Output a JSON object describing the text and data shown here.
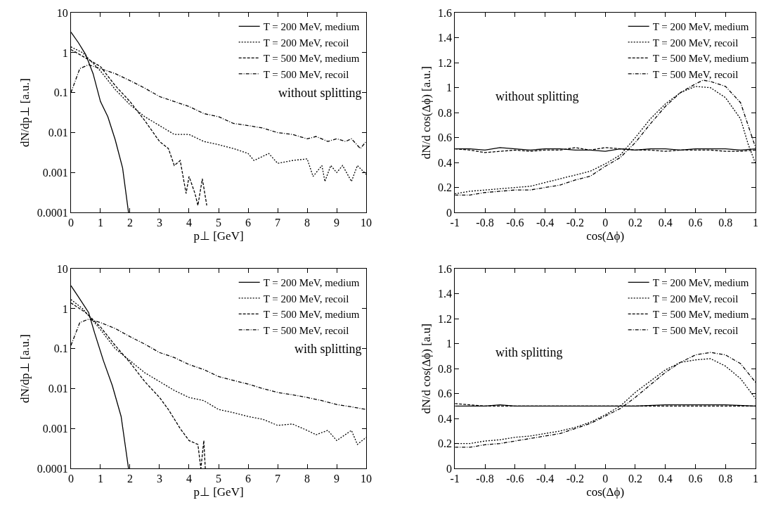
{
  "chart_data": [
    {
      "type": "line",
      "xlabel": "p⊥ [GeV]",
      "ylabel": "dN/dp⊥ [a.u.]",
      "log": "y",
      "xlim": [
        0,
        10
      ],
      "xticks": [
        0,
        1,
        2,
        3,
        4,
        5,
        6,
        7,
        8,
        9,
        10
      ],
      "ylim": [
        0.0001,
        10
      ],
      "yticks": [
        0.0001,
        0.001,
        0.01,
        0.1,
        1,
        10
      ],
      "legend": "top right",
      "annotations": [
        "without splitting"
      ],
      "series": [
        {
          "name": "T = 200 MeV, medium",
          "color": "#000000",
          "line_style": "solid",
          "x": [
            0,
            0.25,
            0.5,
            0.75,
            1.0,
            1.25,
            1.5,
            1.75,
            1.95
          ],
          "values": [
            3.3,
            1.8,
            0.9,
            0.3,
            0.06,
            0.025,
            0.0066,
            0.0013,
            0.0001
          ]
        },
        {
          "name": "T = 200 MeV, recoil",
          "color": "#000000",
          "line_style": "dotted",
          "x": [
            0,
            0.4,
            1,
            1.5,
            2,
            2.5,
            3,
            3.5,
            4,
            4.5,
            5,
            5.5,
            6,
            6.2,
            6.7,
            7,
            7.5,
            8,
            8.2,
            8.5,
            8.6,
            8.8,
            9,
            9.2,
            9.5,
            9.7,
            10
          ],
          "values": [
            1.4,
            1.0,
            0.35,
            0.12,
            0.05,
            0.025,
            0.015,
            0.009,
            0.009,
            0.006,
            0.005,
            0.004,
            0.003,
            0.002,
            0.003,
            0.0017,
            0.002,
            0.0022,
            0.0008,
            0.0015,
            0.0006,
            0.0015,
            0.001,
            0.0015,
            0.0006,
            0.0015,
            0.0009
          ]
        },
        {
          "name": "T = 500 MeV, medium",
          "color": "#000000",
          "line_style": "dashed",
          "x": [
            0,
            0.3,
            1,
            1.5,
            2,
            2.5,
            3,
            3.3,
            3.5,
            3.7,
            3.9,
            4.0,
            4.2,
            4.3,
            4.45,
            4.6
          ],
          "values": [
            1.2,
            0.9,
            0.45,
            0.15,
            0.06,
            0.02,
            0.006,
            0.004,
            0.0015,
            0.002,
            0.0003,
            0.0008,
            0.0003,
            0.00015,
            0.0007,
            0.00015
          ]
        },
        {
          "name": "T = 500 MeV, recoil",
          "color": "#000000",
          "line_style": "dashdot",
          "x": [
            0,
            0.3,
            0.6,
            1,
            1.5,
            2,
            2.5,
            3,
            3.5,
            4,
            4.5,
            5,
            5.5,
            6,
            6.5,
            7,
            7.5,
            8,
            8.3,
            8.7,
            9,
            9.3,
            9.5,
            9.8,
            10
          ],
          "values": [
            0.1,
            0.4,
            0.5,
            0.4,
            0.3,
            0.2,
            0.13,
            0.08,
            0.06,
            0.045,
            0.03,
            0.025,
            0.017,
            0.015,
            0.013,
            0.01,
            0.009,
            0.007,
            0.008,
            0.006,
            0.007,
            0.006,
            0.007,
            0.004,
            0.006
          ]
        }
      ]
    },
    {
      "type": "line",
      "xlabel": "cos(Δϕ)",
      "ylabel": "dN/d cos(Δϕ) [a.u.]",
      "xlim": [
        -1,
        1
      ],
      "xticks": [
        -1,
        -0.8,
        -0.6,
        -0.4,
        -0.2,
        0,
        0.2,
        0.4,
        0.6,
        0.8,
        1
      ],
      "ylim": [
        0,
        1.6
      ],
      "yticks": [
        0,
        0.2,
        0.4,
        0.6,
        0.8,
        1,
        1.2,
        1.4,
        1.6
      ],
      "legend": "top right",
      "annotations": [
        "without splitting"
      ],
      "series": [
        {
          "name": "T = 200 MeV, medium",
          "color": "#000000",
          "line_style": "solid",
          "x": [
            -1,
            -0.9,
            -0.8,
            -0.7,
            -0.6,
            -0.5,
            -0.4,
            -0.3,
            -0.2,
            -0.1,
            0,
            0.1,
            0.2,
            0.3,
            0.4,
            0.5,
            0.6,
            0.7,
            0.8,
            0.9,
            1
          ],
          "values": [
            0.51,
            0.51,
            0.5,
            0.52,
            0.51,
            0.5,
            0.51,
            0.51,
            0.5,
            0.5,
            0.49,
            0.51,
            0.5,
            0.51,
            0.51,
            0.5,
            0.51,
            0.51,
            0.51,
            0.5,
            0.51
          ]
        },
        {
          "name": "T = 200 MeV, recoil",
          "color": "#000000",
          "line_style": "dotted",
          "x": [
            -1,
            -0.9,
            -0.8,
            -0.7,
            -0.6,
            -0.5,
            -0.4,
            -0.3,
            -0.2,
            -0.1,
            0,
            0.1,
            0.2,
            0.3,
            0.4,
            0.5,
            0.6,
            0.7,
            0.8,
            0.9,
            0.95,
            1
          ],
          "values": [
            0.15,
            0.17,
            0.18,
            0.19,
            0.2,
            0.21,
            0.24,
            0.27,
            0.3,
            0.33,
            0.39,
            0.46,
            0.6,
            0.75,
            0.87,
            0.96,
            1.01,
            1.0,
            0.92,
            0.75,
            0.55,
            0.39
          ]
        },
        {
          "name": "T = 500 MeV, medium",
          "color": "#000000",
          "line_style": "dashed",
          "x": [
            -1,
            -0.9,
            -0.8,
            -0.7,
            -0.6,
            -0.5,
            -0.4,
            -0.3,
            -0.2,
            -0.1,
            0,
            0.1,
            0.2,
            0.3,
            0.4,
            0.5,
            0.6,
            0.7,
            0.8,
            0.9,
            1
          ],
          "values": [
            0.51,
            0.5,
            0.48,
            0.49,
            0.5,
            0.49,
            0.5,
            0.5,
            0.52,
            0.5,
            0.52,
            0.51,
            0.5,
            0.5,
            0.49,
            0.5,
            0.5,
            0.5,
            0.49,
            0.49,
            0.5
          ]
        },
        {
          "name": "T = 500 MeV, recoil",
          "color": "#000000",
          "line_style": "dashdot",
          "x": [
            -1,
            -0.9,
            -0.8,
            -0.7,
            -0.6,
            -0.5,
            -0.4,
            -0.3,
            -0.2,
            -0.1,
            0,
            0.1,
            0.2,
            0.3,
            0.4,
            0.5,
            0.6,
            0.65,
            0.7,
            0.8,
            0.9,
            0.95,
            1
          ],
          "values": [
            0.14,
            0.14,
            0.16,
            0.17,
            0.18,
            0.18,
            0.2,
            0.22,
            0.26,
            0.29,
            0.37,
            0.44,
            0.56,
            0.71,
            0.85,
            0.96,
            1.03,
            1.06,
            1.05,
            1.01,
            0.88,
            0.7,
            0.52
          ]
        }
      ]
    },
    {
      "type": "line",
      "xlabel": "p⊥ [GeV]",
      "ylabel": "dN/dp⊥ [a.u.]",
      "log": "y",
      "xlim": [
        0,
        10
      ],
      "xticks": [
        0,
        1,
        2,
        3,
        4,
        5,
        6,
        7,
        8,
        9,
        10
      ],
      "ylim": [
        0.0001,
        10
      ],
      "yticks": [
        0.0001,
        0.001,
        0.01,
        0.1,
        1,
        10
      ],
      "legend": "top right",
      "annotations": [
        "with splitting"
      ],
      "series": [
        {
          "name": "T = 200 MeV, medium",
          "color": "#000000",
          "line_style": "solid",
          "x": [
            0,
            0.25,
            0.6,
            0.8,
            1.1,
            1.4,
            1.7,
            1.95
          ],
          "values": [
            3.8,
            2,
            0.8,
            0.25,
            0.05,
            0.012,
            0.002,
            0.0001
          ]
        },
        {
          "name": "T = 200 MeV, recoil",
          "color": "#000000",
          "line_style": "dotted",
          "x": [
            0,
            0.4,
            1,
            1.5,
            2,
            2.5,
            3,
            3.5,
            4,
            4.5,
            5,
            5.5,
            6,
            6.5,
            7,
            7.5,
            8,
            8.3,
            8.7,
            9,
            9.5,
            9.7,
            10
          ],
          "values": [
            1.7,
            1,
            0.3,
            0.1,
            0.05,
            0.025,
            0.015,
            0.009,
            0.006,
            0.005,
            0.003,
            0.0025,
            0.002,
            0.0017,
            0.0012,
            0.0013,
            0.0009,
            0.0007,
            0.0009,
            0.0005,
            0.0009,
            0.0004,
            0.0006
          ]
        },
        {
          "name": "T = 500 MeV, medium",
          "color": "#000000",
          "line_style": "dashed",
          "x": [
            0,
            0.5,
            1,
            1.5,
            2,
            2.5,
            3,
            3.3,
            3.7,
            4,
            4.3,
            4.4,
            4.5,
            4.55
          ],
          "values": [
            1.4,
            0.8,
            0.35,
            0.12,
            0.045,
            0.015,
            0.006,
            0.003,
            0.001,
            0.0005,
            0.0004,
            0.0001,
            0.0005,
            0.0001
          ]
        },
        {
          "name": "T = 500 MeV, recoil",
          "color": "#000000",
          "line_style": "dashdot",
          "x": [
            0,
            0.3,
            0.6,
            1,
            1.5,
            2,
            2.5,
            3,
            3.5,
            4,
            4.5,
            5,
            5.5,
            6,
            6.5,
            7,
            7.5,
            8,
            8.5,
            9,
            9.5,
            10
          ],
          "values": [
            0.12,
            0.45,
            0.55,
            0.45,
            0.32,
            0.2,
            0.13,
            0.08,
            0.06,
            0.04,
            0.03,
            0.02,
            0.016,
            0.013,
            0.01,
            0.008,
            0.007,
            0.006,
            0.005,
            0.004,
            0.0035,
            0.003
          ]
        }
      ]
    },
    {
      "type": "line",
      "xlabel": "cos(Δϕ)",
      "ylabel": "dN/d cos(Δϕ) [a.u]",
      "xlim": [
        -1,
        1
      ],
      "xticks": [
        -1,
        -0.8,
        -0.6,
        -0.4,
        -0.2,
        0,
        0.2,
        0.4,
        0.6,
        0.8,
        1
      ],
      "ylim": [
        0,
        1.6
      ],
      "yticks": [
        0,
        0.2,
        0.4,
        0.6,
        0.8,
        1,
        1.2,
        1.4,
        1.6
      ],
      "legend": "top right",
      "annotations": [
        "with splitting"
      ],
      "series": [
        {
          "name": "T = 200 MeV, medium",
          "color": "#000000",
          "line_style": "solid",
          "x": [
            -1,
            -0.8,
            -0.7,
            -0.6,
            -0.4,
            -0.2,
            -0.1,
            0,
            0.2,
            0.4,
            0.6,
            0.8,
            1
          ],
          "values": [
            0.5,
            0.5,
            0.51,
            0.5,
            0.5,
            0.5,
            0.5,
            0.5,
            0.5,
            0.51,
            0.51,
            0.51,
            0.5
          ]
        },
        {
          "name": "T = 200 MeV, recoil",
          "color": "#000000",
          "line_style": "dotted",
          "x": [
            -1,
            -0.9,
            -0.8,
            -0.7,
            -0.6,
            -0.5,
            -0.4,
            -0.3,
            -0.2,
            -0.1,
            0,
            0.1,
            0.2,
            0.3,
            0.4,
            0.5,
            0.6,
            0.7,
            0.8,
            0.9,
            1
          ],
          "values": [
            0.2,
            0.2,
            0.22,
            0.23,
            0.25,
            0.26,
            0.28,
            0.3,
            0.33,
            0.37,
            0.43,
            0.5,
            0.61,
            0.7,
            0.79,
            0.85,
            0.87,
            0.88,
            0.82,
            0.72,
            0.56
          ]
        },
        {
          "name": "T = 500 MeV, medium",
          "color": "#000000",
          "line_style": "dashed",
          "x": [
            -1,
            -0.8,
            -0.6,
            -0.4,
            -0.2,
            0,
            0.2,
            0.4,
            0.6,
            0.8,
            1
          ],
          "values": [
            0.52,
            0.5,
            0.5,
            0.5,
            0.5,
            0.5,
            0.5,
            0.5,
            0.5,
            0.5,
            0.5
          ]
        },
        {
          "name": "T = 500 MeV, recoil",
          "color": "#000000",
          "line_style": "dashdot",
          "x": [
            -1,
            -0.9,
            -0.8,
            -0.7,
            -0.6,
            -0.5,
            -0.4,
            -0.3,
            -0.2,
            -0.1,
            0,
            0.1,
            0.2,
            0.3,
            0.4,
            0.5,
            0.6,
            0.7,
            0.8,
            0.9,
            1
          ],
          "values": [
            0.17,
            0.17,
            0.19,
            0.2,
            0.22,
            0.24,
            0.26,
            0.28,
            0.32,
            0.36,
            0.42,
            0.48,
            0.57,
            0.67,
            0.77,
            0.85,
            0.91,
            0.93,
            0.91,
            0.84,
            0.69
          ]
        }
      ]
    }
  ]
}
